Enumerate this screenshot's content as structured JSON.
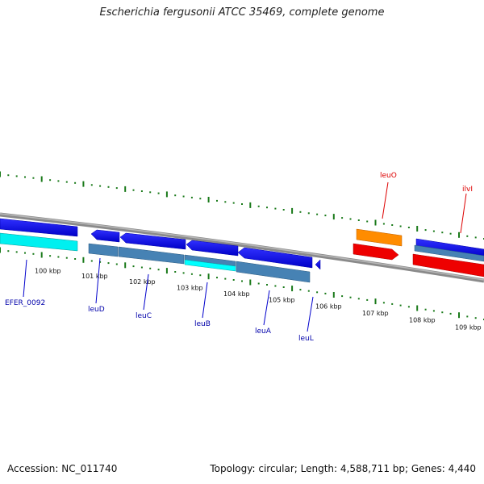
{
  "title": "Escherichia fergusonii ATCC 35469, complete genome",
  "footer": {
    "accession": "Accession: NC_011740",
    "stats": "Topology: circular; Length: 4,588,711 bp; Genes: 4,440"
  },
  "colors": {
    "backbone": "#8a8a8a",
    "tick": "#1a7a1a",
    "gene_forward": "#0000ee",
    "gene_reverse": "#ee0000",
    "cds_light": "#00ffff",
    "cds_steel": "#4682b4",
    "rna": "#ff8c00",
    "label_blue": "#0000aa",
    "label_red": "#dd0000"
  },
  "ticks": [
    "100 kbp",
    "101 kbp",
    "102 kbp",
    "103 kbp",
    "104 kbp",
    "105 kbp",
    "106 kbp",
    "107 kbp",
    "108 kbp",
    "109 kbp"
  ],
  "genes": [
    {
      "name": "EFER_0092",
      "color": "label_blue"
    },
    {
      "name": "leuD",
      "color": "label_blue"
    },
    {
      "name": "leuC",
      "color": "label_blue"
    },
    {
      "name": "leuB",
      "color": "label_blue"
    },
    {
      "name": "leuA",
      "color": "label_blue"
    },
    {
      "name": "leuL",
      "color": "label_blue"
    },
    {
      "name": "leuO",
      "color": "label_red"
    },
    {
      "name": "ilvI",
      "color": "label_red"
    }
  ]
}
